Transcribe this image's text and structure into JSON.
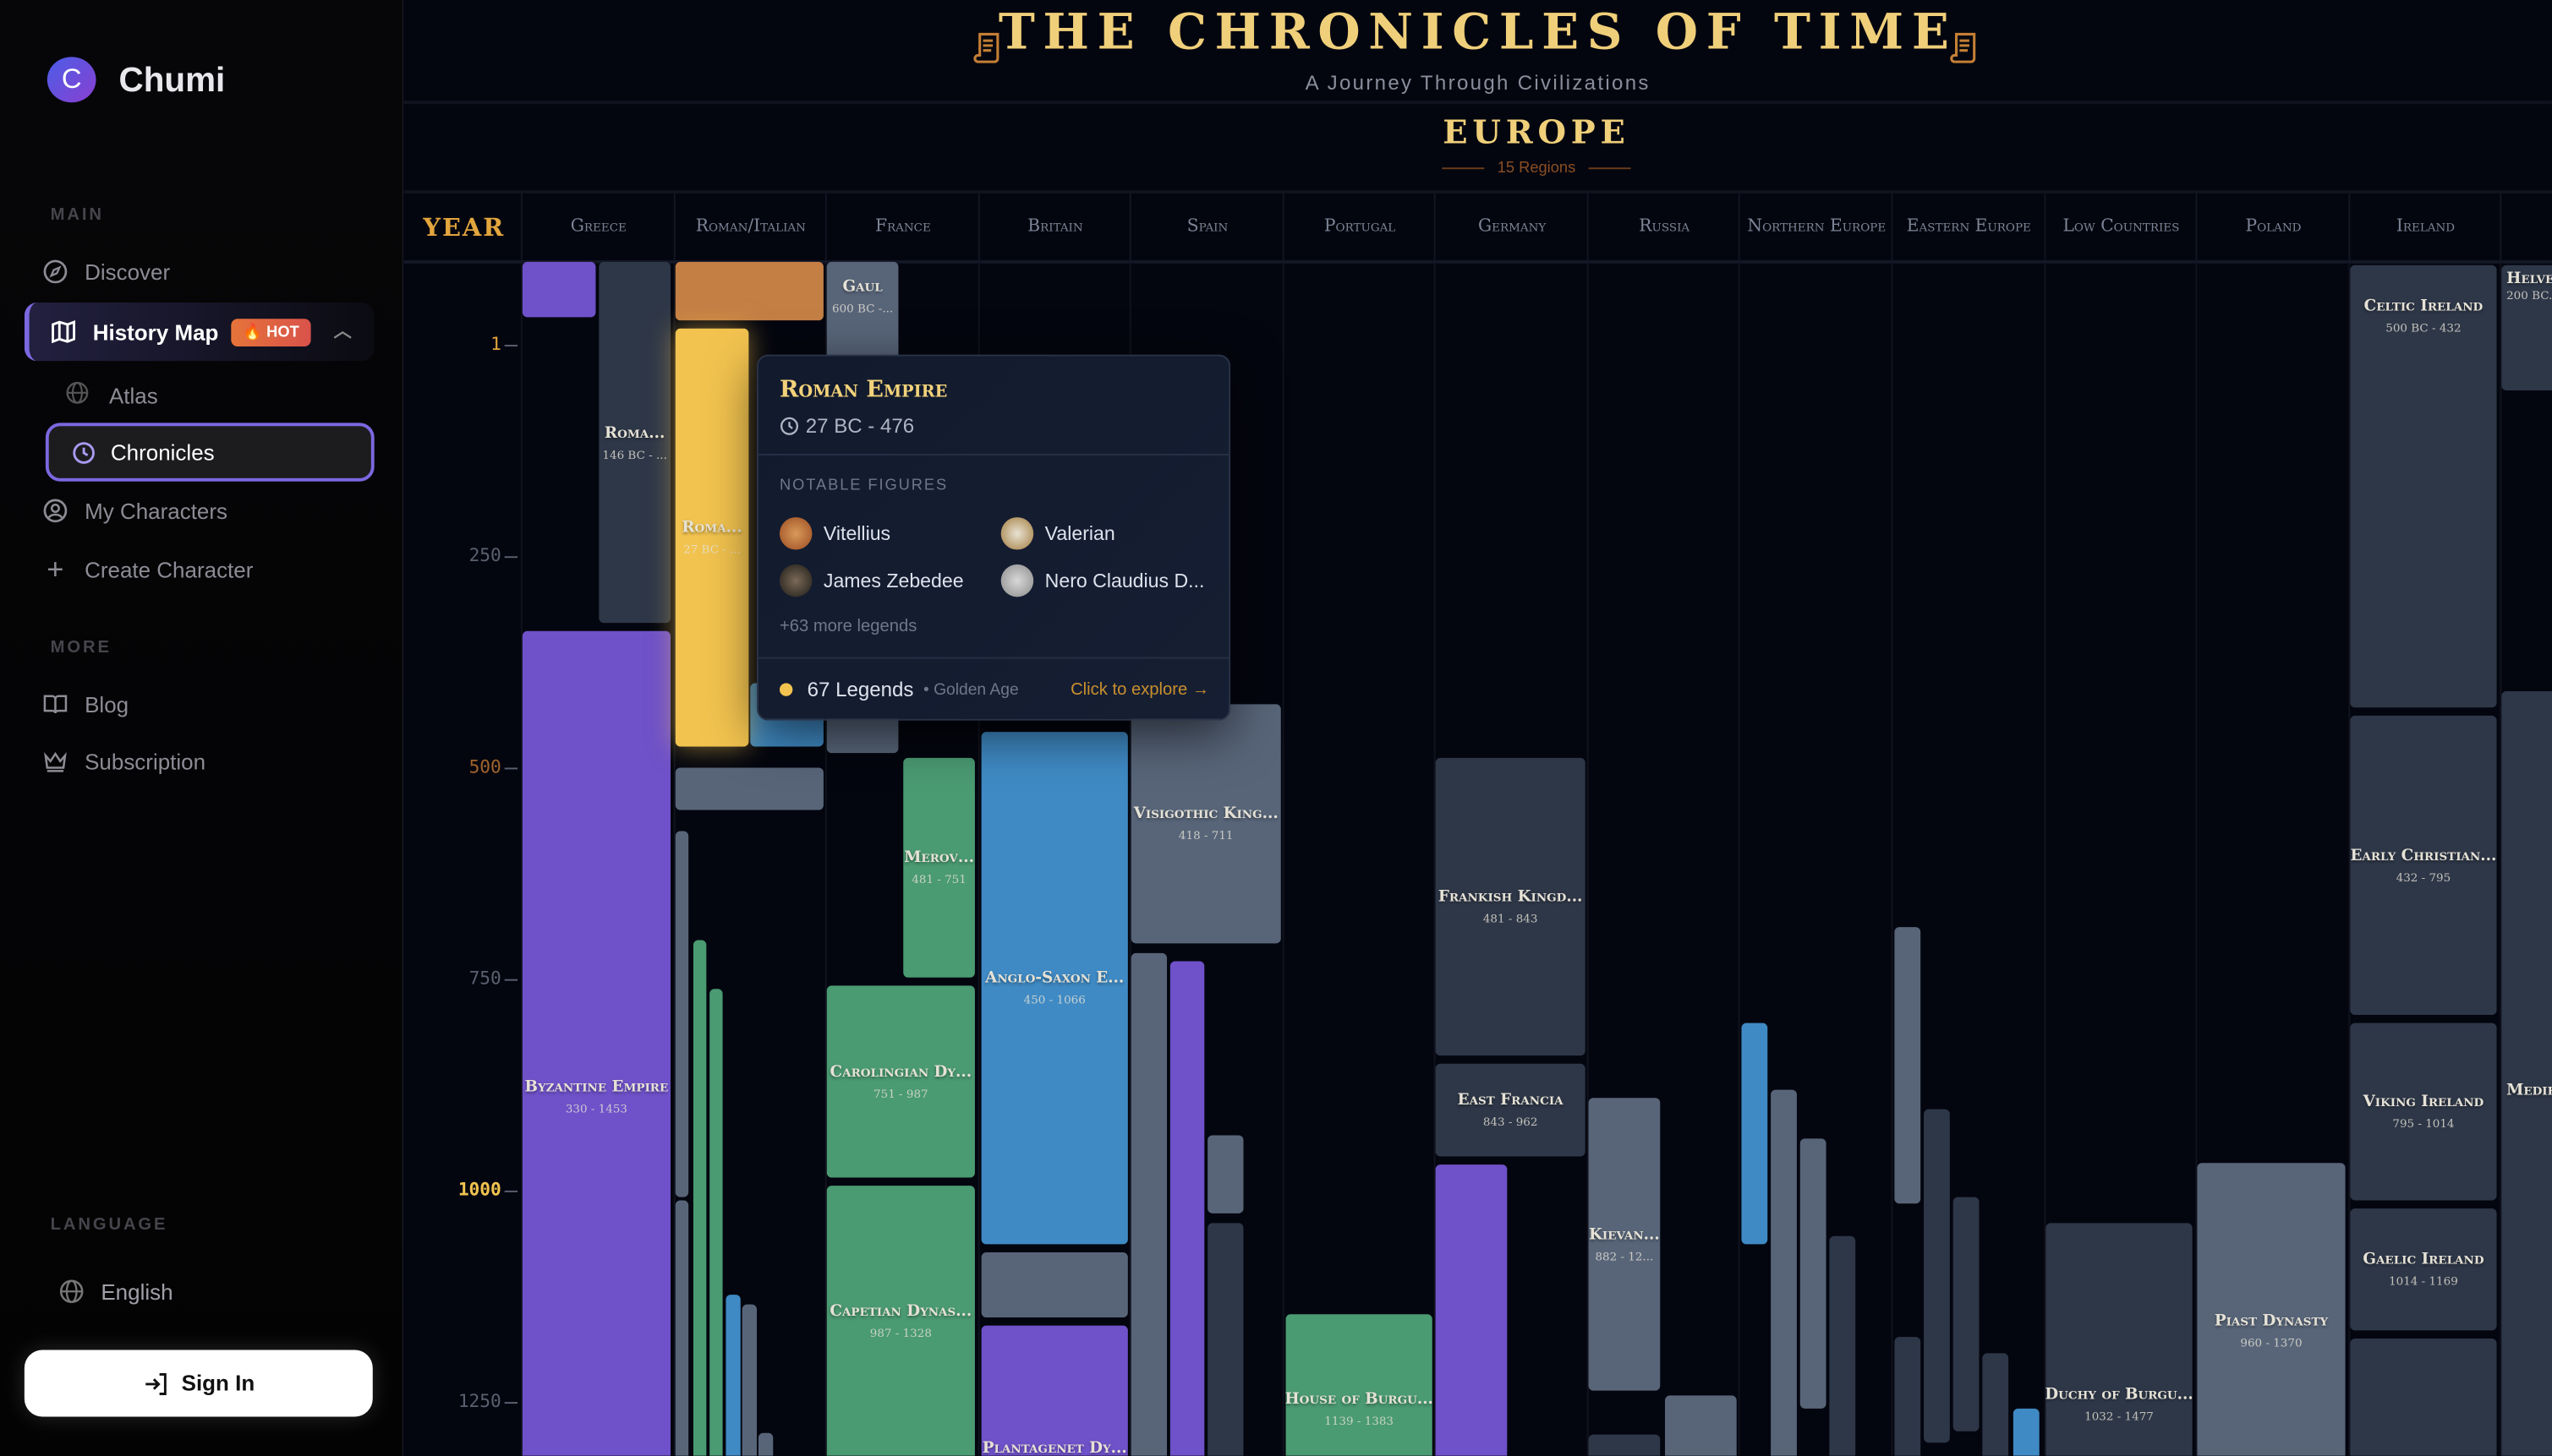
{
  "sidebar": {
    "brand": "Chumi",
    "logo_letter": "C",
    "main_label": "MAIN",
    "more_label": "MORE",
    "language_label": "LANGUAGE",
    "items": {
      "discover": "Discover",
      "history_map": "History Map",
      "hot_badge": "HOT",
      "atlas": "Atlas",
      "chronicles": "Chronicles",
      "my_characters": "My Characters",
      "create_character": "Create Character",
      "blog": "Blog",
      "subscription": "Subscription"
    },
    "language": "English",
    "sign_in": "Sign In"
  },
  "header": {
    "title": "THE CHRONICLES OF TIME",
    "subtitle": "A Journey Through Civilizations",
    "continent": "EUROPE",
    "region_count": "15 Regions"
  },
  "year_header": "YEAR",
  "columns": [
    "Greece",
    "Roman/Italian",
    "France",
    "Britain",
    "Spain",
    "Portugal",
    "Germany",
    "Russia",
    "Northern Europe",
    "Eastern Europe",
    "Low Countries",
    "Poland",
    "Ireland",
    "Swi"
  ],
  "year_ticks": [
    "1",
    "250",
    "500",
    "750",
    "1000",
    "1250"
  ],
  "periods": {
    "roman_republic": {
      "name": "Roma...",
      "dates": "146 BC - ..."
    },
    "byzantine": {
      "name": "Byzantine Empire",
      "dates": "330 - 1453"
    },
    "roman_empire": {
      "name": "Roma...",
      "dates": "27 BC - ..."
    },
    "gaul": {
      "name": "Gaul",
      "dates": "600 BC -..."
    },
    "merovingian": {
      "name": "Merov...",
      "dates": "481 - 751"
    },
    "carolingian": {
      "name": "Carolingian Dy...",
      "dates": "751 - 987"
    },
    "capetian": {
      "name": "Capetian Dynas...",
      "dates": "987 - 1328"
    },
    "anglo_saxon": {
      "name": "Anglo-Saxon E...",
      "dates": "450 - 1066"
    },
    "plantagenet": {
      "name": "Plantagenet Dy...",
      "dates": ""
    },
    "visigothic": {
      "name": "Visigothic King...",
      "dates": "418 - 711"
    },
    "house_burgundy": {
      "name": "House of Burgu...",
      "dates": "1139 - 1383"
    },
    "frankish": {
      "name": "Frankish Kingd...",
      "dates": "481 - 843"
    },
    "east_francia": {
      "name": "East Francia",
      "dates": "843 - 962"
    },
    "kievan": {
      "name": "Kievan...",
      "dates": "882 - 12..."
    },
    "duchy_burgundy": {
      "name": "Duchy of Burgu...",
      "dates": "1032 - 1477"
    },
    "piast": {
      "name": "Piast Dynasty",
      "dates": "960 - 1370"
    },
    "celtic_ireland": {
      "name": "Celtic Ireland",
      "dates": "500 BC - 432"
    },
    "early_christian": {
      "name": "Early Christian...",
      "dates": "432 - 795"
    },
    "viking_ireland": {
      "name": "Viking Ireland",
      "dates": "795 - 1014"
    },
    "gaelic_ireland": {
      "name": "Gaelic Ireland",
      "dates": "1014 - 1169"
    },
    "helvetii": {
      "name": "Helve...",
      "dates": "200 BC..."
    },
    "medieval_swiss": {
      "name": "Medie...",
      "dates": ""
    }
  },
  "tooltip": {
    "title": "Roman Empire",
    "dates": "27 BC - 476",
    "notable_label": "NOTABLE FIGURES",
    "figures": [
      "Vitellius",
      "Valerian",
      "James Zebedee",
      "Nero Claudius D..."
    ],
    "more": "+63 more legends",
    "legends": "67 Legends",
    "era": "• Golden Age",
    "explore": "Click to explore →"
  },
  "colors": {
    "purple": "#6f51c9",
    "slate": "#586579",
    "dark": "#2e3748",
    "green": "#4a9a72",
    "blue": "#3f8ac4",
    "orange": "#c47f45",
    "highlight": "#f2c34f",
    "gold": "#f0cf7a"
  }
}
